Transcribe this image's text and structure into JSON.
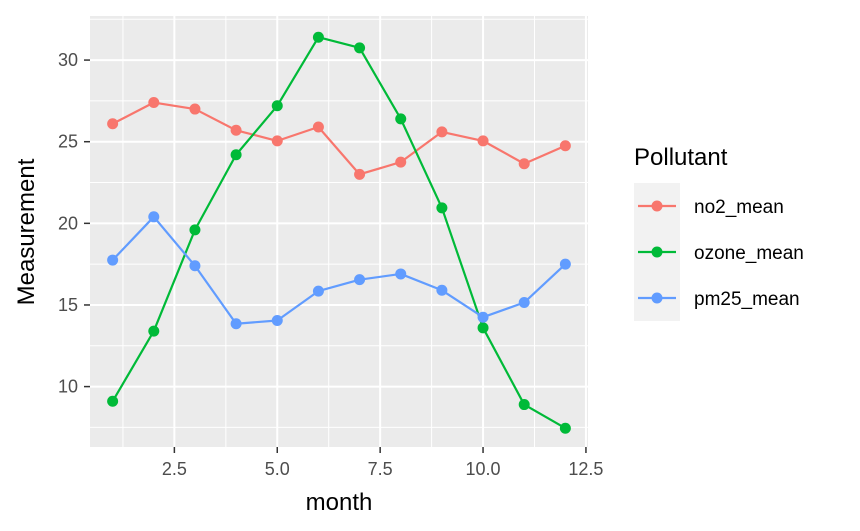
{
  "chart_data": {
    "type": "line",
    "title": "",
    "xlabel": "month",
    "ylabel": "Measurement",
    "xlim": [
      0.45,
      12.55
    ],
    "ylim": [
      6.3,
      32.7
    ],
    "x_ticks": [
      2.5,
      5.0,
      7.5,
      10.0,
      12.5
    ],
    "x_tick_labels": [
      "2.5",
      "5.0",
      "7.5",
      "10.0",
      "12.5"
    ],
    "y_ticks": [
      10,
      15,
      20,
      25,
      30
    ],
    "y_tick_labels": [
      "10",
      "15",
      "20",
      "25",
      "30"
    ],
    "grid": true,
    "legend_title": "Pollutant",
    "legend_position": "right",
    "x": [
      1,
      2,
      3,
      4,
      5,
      6,
      7,
      8,
      9,
      10,
      11,
      12
    ],
    "series": [
      {
        "name": "no2_mean",
        "color": "#F8766D",
        "values": [
          26.1,
          27.4,
          27.0,
          25.7,
          25.05,
          25.9,
          23.0,
          23.75,
          25.6,
          25.05,
          23.65,
          24.75
        ]
      },
      {
        "name": "ozone_mean",
        "color": "#00BA38",
        "values": [
          9.1,
          13.4,
          19.6,
          24.2,
          27.2,
          31.4,
          30.75,
          26.4,
          20.95,
          13.6,
          8.9,
          7.45
        ]
      },
      {
        "name": "pm25_mean",
        "color": "#619CFF",
        "values": [
          17.75,
          20.4,
          17.4,
          13.85,
          14.05,
          15.85,
          16.55,
          16.9,
          15.9,
          14.25,
          15.15,
          17.5
        ]
      }
    ]
  }
}
